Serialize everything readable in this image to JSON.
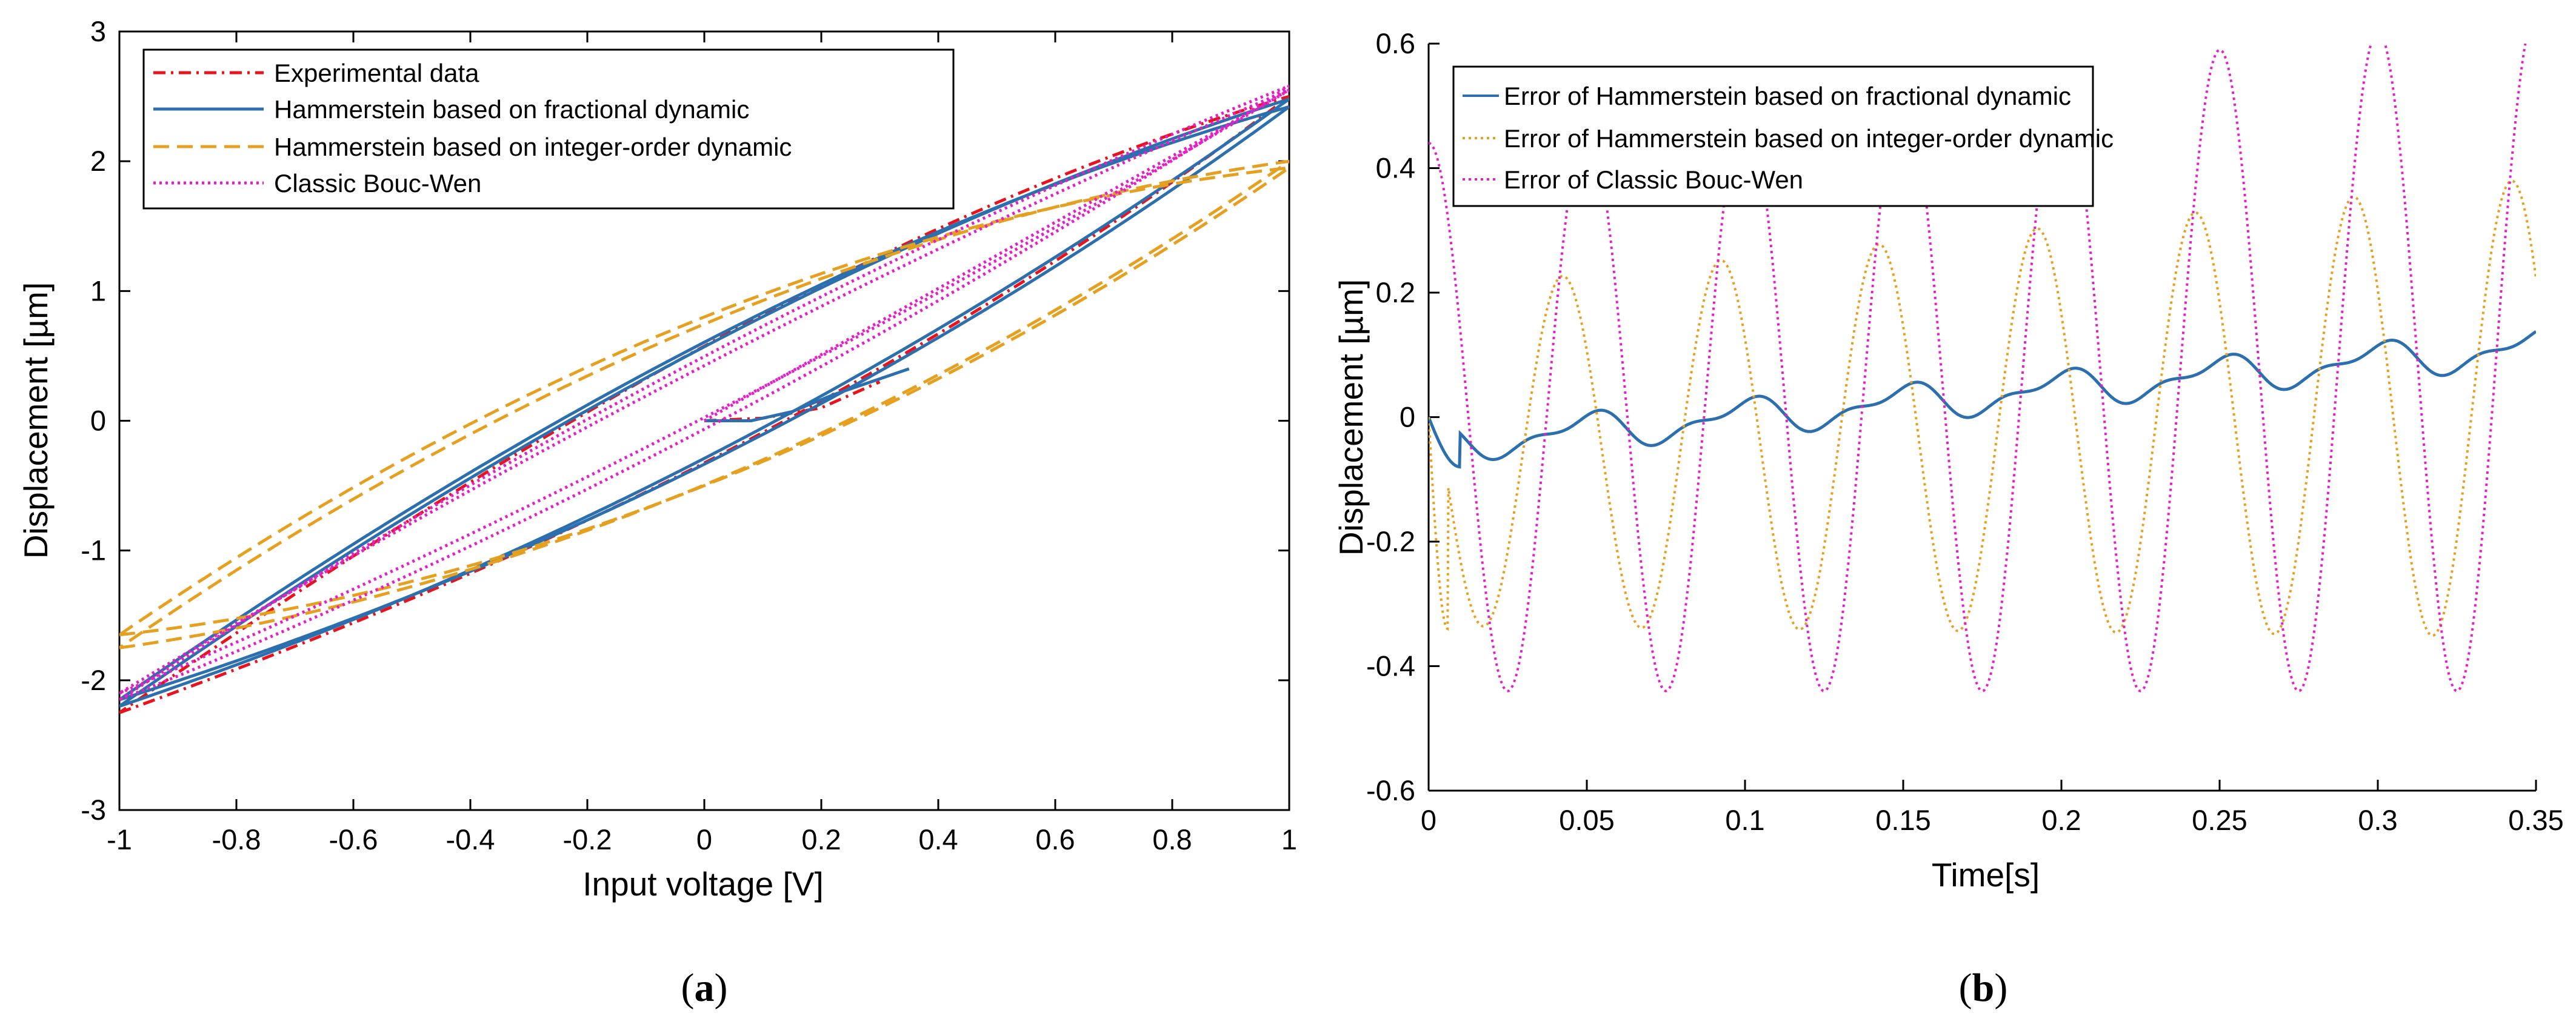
{
  "chart_data": [
    {
      "type": "line",
      "panel": "(a)",
      "caption_letter": "a",
      "xlabel": "Input voltage [V]",
      "ylabel": "Displacement [µm]",
      "xlim": [
        -1,
        1
      ],
      "ylim": [
        -3,
        3
      ],
      "xticks": [
        -1,
        -0.8,
        -0.6,
        -0.4,
        -0.2,
        0,
        0.2,
        0.4,
        0.6,
        0.8,
        1
      ],
      "xtick_labels": [
        "-1",
        "-0.8",
        "-0.6",
        "-0.4",
        "-0.2",
        "0",
        "0.2",
        "0.4",
        "0.6",
        "0.8",
        "1"
      ],
      "yticks": [
        -3,
        -2,
        -1,
        0,
        1,
        2,
        3
      ],
      "ytick_labels": [
        "-3",
        "-2",
        "-1",
        "0",
        "1",
        "2",
        "3"
      ],
      "legend_position": "top-left",
      "series": [
        {
          "name": "Experimental data",
          "color": "#e8131c",
          "style": "dashdot",
          "loops": [
            {
              "up_start": -2.25,
              "up_end": 2.5,
              "a": 0.8,
              "b": 0.01,
              "h1": 0.45,
              "h2": 0.15,
              "hs": 0.08
            }
          ],
          "initial": [
            [
              0.0,
              0.0
            ],
            [
              0.1,
              0.02
            ],
            [
              0.2,
              0.1
            ],
            [
              0.3,
              0.3
            ]
          ]
        },
        {
          "name": "Hammerstein based on fractional dynamic",
          "color": "#2c6fae",
          "style": "solid",
          "loops": [
            {
              "up_start": -2.2,
              "up_end": 2.48,
              "a": 0.83,
              "b": 0.0,
              "h1": 0.43,
              "h2": 0.12,
              "hs": 0.02
            },
            {
              "up_start": -2.15,
              "up_end": 2.42,
              "a": 0.83,
              "b": 0.0,
              "h1": 0.47,
              "h2": 0.13,
              "hs": 0.04
            }
          ],
          "initial": [
            [
              0.0,
              0.0
            ],
            [
              0.08,
              0.0
            ],
            [
              0.15,
              0.07
            ],
            [
              0.22,
              0.2
            ],
            [
              0.35,
              0.4
            ]
          ]
        },
        {
          "name": "Hammerstein based on integer-order dynamic",
          "color": "#e6a020",
          "style": "dashed",
          "loops": [
            {
              "up_start": -1.75,
              "up_end": 2.0,
              "a": 0.83,
              "b": 0.0,
              "h1": 0.62,
              "h2": 0.06,
              "hs": 0.0
            },
            {
              "up_start": -1.65,
              "up_end": 1.95,
              "a": 0.83,
              "b": 0.0,
              "h1": 0.65,
              "h2": 0.06,
              "hs": 0.0
            }
          ]
        },
        {
          "name": "Classic Bouc-Wen",
          "color": "#e61ec8",
          "style": "dotted",
          "loops": [
            {
              "up_start": -2.15,
              "up_end": 2.58,
              "a": 0.05,
              "b": 0.0,
              "h1": 0.28,
              "h2": 0.02,
              "hs": 0.0
            },
            {
              "up_start": -2.1,
              "up_end": 2.55,
              "a": 0.05,
              "b": 0.0,
              "h1": 0.2,
              "h2": 0.02,
              "hs": 0.0
            }
          ]
        }
      ]
    },
    {
      "type": "line",
      "panel": "(b)",
      "caption_letter": "b",
      "xlabel": "Time[s]",
      "ylabel": "Displacement [µm]",
      "xlim": [
        0,
        0.35
      ],
      "ylim": [
        -0.6,
        0.6
      ],
      "xticks": [
        0,
        0.05,
        0.1,
        0.15,
        0.2,
        0.25,
        0.3,
        0.35
      ],
      "xtick_labels": [
        "0",
        "0.05",
        "0.1",
        "0.15",
        "0.2",
        "0.25",
        "0.3",
        "0.35"
      ],
      "yticks": [
        -0.6,
        -0.4,
        -0.2,
        0,
        0.2,
        0.4,
        0.6
      ],
      "ytick_labels": [
        "-0.6",
        "-0.4",
        "-0.2",
        "0",
        "0.2",
        "0.4",
        "0.6"
      ],
      "legend_position": "top-left",
      "series": [
        {
          "name": "Error of Hammerstein based on fractional dynamic",
          "color": "#2c6fae",
          "style": "solid",
          "offset0": -0.045,
          "offset_slope": 0.45,
          "amp": 0.025,
          "freq": 20,
          "phase": 1.6,
          "ripple": 0.012,
          "ripple_freq": 40,
          "start_dip": -0.035
        },
        {
          "name": "Error of Hammerstein based on integer-order dynamic",
          "color": "#e6a020",
          "style": "dotted",
          "offset0": -0.07,
          "offset_slope": 0.23,
          "amp": 0.27,
          "amp_slope": 0.28,
          "freq": 20,
          "phase": -0.6,
          "ripple": 0.0
        },
        {
          "name": "Error of Classic Bouc-Wen",
          "color": "#e61ec8",
          "style": "dotted",
          "offset0": 0.0,
          "offset_slope": 0.3,
          "amp": 0.44,
          "amp_slope": 0.3,
          "freq": 20,
          "phase": 0.0,
          "ripple": 0.0
        }
      ]
    }
  ]
}
